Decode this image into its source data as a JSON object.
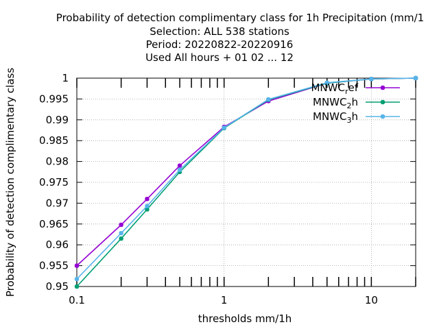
{
  "chart_data": {
    "type": "line",
    "title_lines": [
      "Probability of detection complimentary class  for 1h Precipitation (mm/1",
      "Selection: ALL    538 stations",
      "Period: 20220822-20220916",
      "Used  All hours + 01 02 ... 12"
    ],
    "xlabel": "thresholds mm/1h",
    "ylabel": "Probability of detection complimentary class",
    "x_scale": "log",
    "xlim": [
      0.1,
      20
    ],
    "ylim": [
      0.95,
      1.0
    ],
    "x_ticks": [
      0.1,
      1,
      10
    ],
    "x_tick_labels": [
      "0.1",
      "1",
      "10"
    ],
    "y_ticks": [
      0.95,
      0.955,
      0.96,
      0.965,
      0.97,
      0.975,
      0.98,
      0.985,
      0.99,
      0.995,
      1.0
    ],
    "y_tick_labels": [
      "0.95",
      "0.955",
      "0.96",
      "0.965",
      "0.97",
      "0.975",
      "0.98",
      "0.985",
      "0.99",
      "0.995",
      "1"
    ],
    "grid": true,
    "legend_position": "top-right",
    "x": [
      0.1,
      0.2,
      0.3,
      0.5,
      1,
      2,
      5,
      10,
      20
    ],
    "series": [
      {
        "name": "MNWC_ref",
        "legend_main": "MNWC",
        "legend_sub": "r",
        "legend_tail": "ef",
        "color": "#9400d3",
        "values": [
          0.955,
          0.9648,
          0.971,
          0.979,
          0.9883,
          0.9945,
          0.9988,
          0.9998,
          1.0
        ]
      },
      {
        "name": "MNWC_2h",
        "legend_main": "MNWC",
        "legend_sub": "2",
        "legend_tail": "h",
        "color": "#009e73",
        "values": [
          0.95,
          0.9615,
          0.9685,
          0.9775,
          0.988,
          0.9948,
          0.9988,
          0.9998,
          1.0
        ]
      },
      {
        "name": "MNWC_3h",
        "legend_main": "MNWC",
        "legend_sub": "3",
        "legend_tail": "h",
        "color": "#56b4e9",
        "values": [
          0.9518,
          0.9628,
          0.9693,
          0.978,
          0.9881,
          0.9949,
          0.9989,
          0.9998,
          1.0
        ]
      }
    ]
  }
}
